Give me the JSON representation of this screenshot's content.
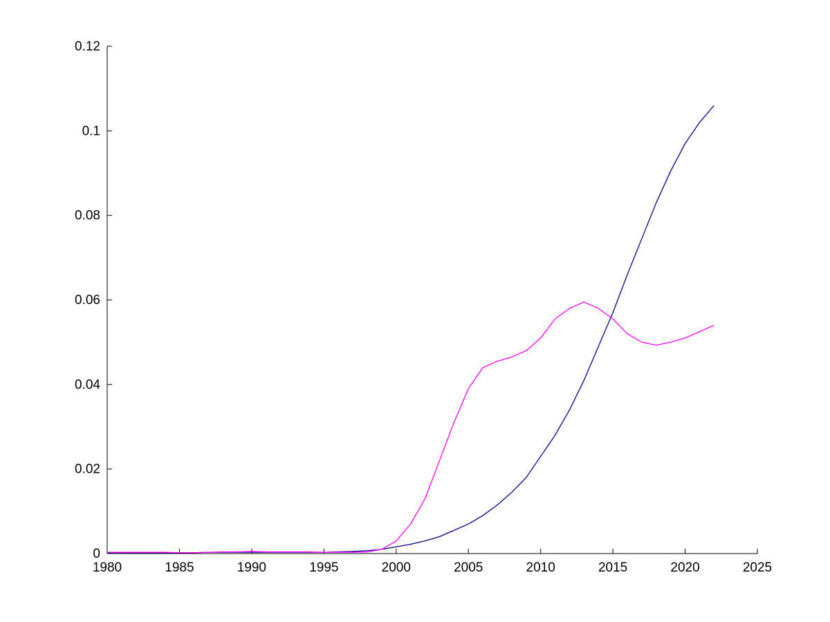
{
  "figure": {
    "background": "#ffffff",
    "axis_color": "#000000",
    "tick_label_color": "#000000"
  },
  "chart_data": {
    "type": "line",
    "title": "",
    "xlabel": "",
    "ylabel": "",
    "grid": false,
    "legend": "none",
    "xlim": [
      1980,
      2025
    ],
    "ylim": [
      0,
      0.12
    ],
    "x_ticks": [
      1980,
      1985,
      1990,
      1995,
      2000,
      2005,
      2010,
      2015,
      2020,
      2025
    ],
    "x_tick_labels": [
      "1980",
      "1985",
      "1990",
      "1995",
      "2000",
      "2005",
      "2010",
      "2015",
      "2020",
      "2025"
    ],
    "y_ticks": [
      0,
      0.02,
      0.04,
      0.06,
      0.08,
      0.1,
      0.12
    ],
    "y_tick_labels": [
      "0",
      "0.02",
      "0.04",
      "0.06",
      "0.08",
      "0.1",
      "0.12"
    ],
    "x": [
      1980,
      1981,
      1982,
      1983,
      1984,
      1985,
      1986,
      1987,
      1988,
      1989,
      1990,
      1991,
      1992,
      1993,
      1994,
      1995,
      1996,
      1997,
      1998,
      1999,
      2000,
      2001,
      2002,
      2003,
      2004,
      2005,
      2006,
      2007,
      2008,
      2009,
      2010,
      2011,
      2012,
      2013,
      2014,
      2015,
      2016,
      2017,
      2018,
      2019,
      2020,
      2021,
      2022
    ],
    "series": [
      {
        "name": "dark-blue-series",
        "color": "#00008B",
        "values": [
          0.0002,
          0.0002,
          0.0002,
          0.0002,
          0.0002,
          0.0002,
          0.0002,
          0.0003,
          0.0003,
          0.0003,
          0.0003,
          0.0003,
          0.0003,
          0.0003,
          0.0003,
          0.0003,
          0.0004,
          0.0005,
          0.0007,
          0.001,
          0.0016,
          0.0022,
          0.003,
          0.004,
          0.0055,
          0.007,
          0.009,
          0.0115,
          0.0145,
          0.018,
          0.023,
          0.028,
          0.034,
          0.041,
          0.049,
          0.057,
          0.066,
          0.0745,
          0.083,
          0.0905,
          0.097,
          0.102,
          0.106
        ]
      },
      {
        "name": "magenta-series",
        "color": "#FF00FF",
        "values": [
          0.0003,
          0.0003,
          0.0003,
          0.0003,
          0.0003,
          0.0002,
          0.0002,
          0.0003,
          0.0004,
          0.0004,
          0.0005,
          0.0004,
          0.0004,
          0.0004,
          0.0004,
          0.0003,
          0.0003,
          0.0003,
          0.0004,
          0.001,
          0.003,
          0.007,
          0.013,
          0.022,
          0.031,
          0.039,
          0.044,
          0.0455,
          0.0465,
          0.048,
          0.051,
          0.0555,
          0.058,
          0.0595,
          0.058,
          0.0555,
          0.052,
          0.05,
          0.0493,
          0.05,
          0.051,
          0.0525,
          0.054
        ]
      }
    ]
  }
}
